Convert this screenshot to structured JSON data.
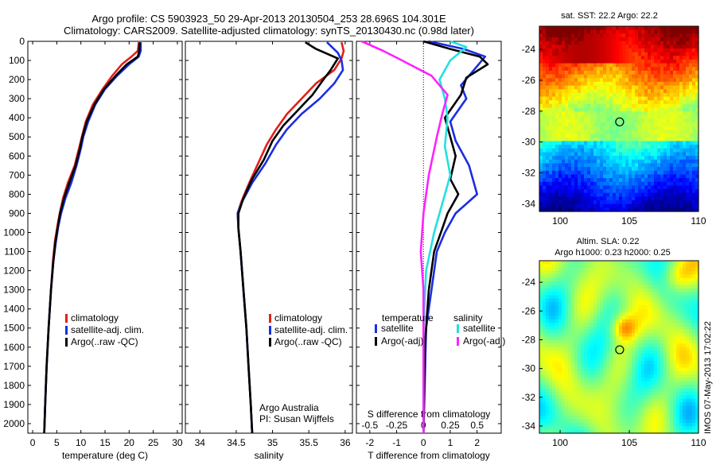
{
  "header": {
    "line1": "Argo profile: CS 5903923_50 29-Apr-2013 20130504_253 28.696S 104.301E",
    "line2": "Climatology: CARS2009. Satellite-adjusted climatology: synTS_20130430.nc (0.98d later)"
  },
  "colors": {
    "climatology": "#e0201a",
    "satellite": "#1a2ee0",
    "argo": "#000000",
    "sat_salinity": "#22e0e0",
    "argo_salinity": "#ff22ff"
  },
  "watermark": "IMOS 07-May-2013 17:02:22",
  "chart_data": [
    {
      "type": "line",
      "id": "temperature",
      "xlabel": "temperature (deg C)",
      "xlim": [
        -1,
        31
      ],
      "xticks": [
        0,
        5,
        10,
        15,
        20,
        25,
        30
      ],
      "ylim": [
        0,
        2050
      ],
      "yticks": [
        0,
        100,
        200,
        300,
        400,
        500,
        600,
        700,
        800,
        900,
        1000,
        1100,
        1200,
        1300,
        1400,
        1500,
        1600,
        1700,
        1800,
        1900,
        2000
      ],
      "legend": [
        "climatology",
        "satellite-adj. clim.",
        "Argo(..raw -QC)"
      ],
      "series": [
        {
          "name": "climatology",
          "color_key": "climatology",
          "points": [
            [
              22.0,
              5
            ],
            [
              21.8,
              50
            ],
            [
              20.5,
              80
            ],
            [
              18.5,
              120
            ],
            [
              16.5,
              180
            ],
            [
              14.5,
              250
            ],
            [
              12.5,
              330
            ],
            [
              11.0,
              420
            ],
            [
              10.2,
              500
            ],
            [
              9.6,
              560
            ],
            [
              8.7,
              650
            ],
            [
              7.3,
              740
            ],
            [
              6.3,
              820
            ],
            [
              5.6,
              900
            ],
            [
              5.1,
              970
            ],
            [
              4.6,
              1050
            ],
            [
              4.2,
              1150
            ],
            [
              3.8,
              1300
            ],
            [
              3.3,
              1500
            ],
            [
              2.9,
              1700
            ],
            [
              2.6,
              1900
            ],
            [
              2.4,
              2050
            ]
          ]
        },
        {
          "name": "satellite-adj. clim.",
          "color_key": "satellite",
          "points": [
            [
              22.4,
              5
            ],
            [
              22.4,
              50
            ],
            [
              22.0,
              80
            ],
            [
              20.0,
              120
            ],
            [
              17.5,
              180
            ],
            [
              15.0,
              250
            ],
            [
              13.0,
              330
            ],
            [
              11.5,
              420
            ],
            [
              10.5,
              500
            ],
            [
              10.0,
              560
            ],
            [
              9.1,
              650
            ],
            [
              8.0,
              740
            ],
            [
              6.8,
              820
            ],
            [
              5.9,
              900
            ],
            [
              5.3,
              970
            ],
            [
              4.8,
              1050
            ],
            [
              4.3,
              1150
            ],
            [
              3.8,
              1300
            ],
            [
              3.3,
              1500
            ],
            [
              2.9,
              1700
            ],
            [
              2.6,
              1900
            ],
            [
              2.4,
              2050
            ]
          ]
        },
        {
          "name": "Argo(..raw -QC)",
          "color_key": "argo",
          "points": [
            [
              22.2,
              5
            ],
            [
              22.1,
              50
            ],
            [
              21.8,
              80
            ],
            [
              19.5,
              120
            ],
            [
              17.2,
              180
            ],
            [
              14.8,
              250
            ],
            [
              12.8,
              330
            ],
            [
              11.2,
              420
            ],
            [
              10.3,
              500
            ],
            [
              9.8,
              560
            ],
            [
              8.9,
              650
            ],
            [
              7.6,
              740
            ],
            [
              6.5,
              820
            ],
            [
              5.7,
              900
            ],
            [
              5.2,
              970
            ],
            [
              4.7,
              1050
            ],
            [
              4.3,
              1150
            ],
            [
              3.8,
              1300
            ],
            [
              3.3,
              1500
            ],
            [
              2.9,
              1700
            ],
            [
              2.6,
              1900
            ],
            [
              2.4,
              2050
            ]
          ]
        }
      ]
    },
    {
      "type": "line",
      "id": "salinity",
      "xlabel": "salinity",
      "xlim": [
        33.8,
        36.1
      ],
      "xticks": [
        34,
        34.5,
        35,
        35.5,
        36
      ],
      "ylim": [
        0,
        2050
      ],
      "legend": [
        "climatology",
        "satellite-adj. clim.",
        "Argo(..raw -QC)"
      ],
      "annotation": [
        "Argo Australia",
        "PI: Susan Wijffels"
      ],
      "series": [
        {
          "name": "climatology",
          "color_key": "climatology",
          "points": [
            [
              35.95,
              5
            ],
            [
              35.98,
              50
            ],
            [
              35.95,
              90
            ],
            [
              35.85,
              150
            ],
            [
              35.6,
              220
            ],
            [
              35.4,
              300
            ],
            [
              35.2,
              380
            ],
            [
              35.05,
              460
            ],
            [
              34.92,
              540
            ],
            [
              34.8,
              640
            ],
            [
              34.68,
              740
            ],
            [
              34.57,
              840
            ],
            [
              34.52,
              900
            ],
            [
              34.53,
              980
            ],
            [
              34.56,
              1100
            ],
            [
              34.6,
              1300
            ],
            [
              34.64,
              1500
            ],
            [
              34.67,
              1700
            ],
            [
              34.7,
              1900
            ],
            [
              34.72,
              2050
            ]
          ]
        },
        {
          "name": "satellite-adj. clim.",
          "color_key": "satellite",
          "points": [
            [
              35.75,
              5
            ],
            [
              35.9,
              60
            ],
            [
              35.95,
              100
            ],
            [
              35.97,
              150
            ],
            [
              35.85,
              220
            ],
            [
              35.65,
              300
            ],
            [
              35.4,
              380
            ],
            [
              35.2,
              460
            ],
            [
              35.05,
              540
            ],
            [
              34.9,
              640
            ],
            [
              34.72,
              740
            ],
            [
              34.58,
              840
            ],
            [
              34.52,
              900
            ],
            [
              34.53,
              980
            ],
            [
              34.56,
              1100
            ],
            [
              34.6,
              1300
            ],
            [
              34.64,
              1500
            ],
            [
              34.67,
              1700
            ],
            [
              34.7,
              1900
            ],
            [
              34.72,
              2050
            ]
          ]
        },
        {
          "name": "Argo(..raw -QC)",
          "color_key": "argo",
          "points": [
            [
              35.45,
              5
            ],
            [
              35.6,
              40
            ],
            [
              35.9,
              90
            ],
            [
              35.8,
              150
            ],
            [
              35.7,
              200
            ],
            [
              35.55,
              280
            ],
            [
              35.35,
              360
            ],
            [
              35.15,
              440
            ],
            [
              35.0,
              520
            ],
            [
              34.88,
              620
            ],
            [
              34.72,
              720
            ],
            [
              34.6,
              820
            ],
            [
              34.53,
              900
            ],
            [
              34.53,
              980
            ],
            [
              34.56,
              1100
            ],
            [
              34.6,
              1300
            ],
            [
              34.64,
              1500
            ],
            [
              34.67,
              1700
            ],
            [
              34.7,
              1900
            ],
            [
              34.72,
              2050
            ]
          ]
        }
      ]
    },
    {
      "type": "line",
      "id": "differences",
      "xlabel": "T difference from climatology",
      "xlim": [
        -2.5,
        2.9
      ],
      "xticks": [
        -2,
        -1,
        0,
        1,
        2
      ],
      "top_label": "S difference from climatology",
      "top_ticks": [
        "-0.5",
        "-0.25",
        "0",
        "0.25",
        "0.5"
      ],
      "top_tick_x": [
        -2,
        -1,
        0,
        1,
        2
      ],
      "ylim": [
        0,
        2050
      ],
      "legend_temperature_title": "temperature",
      "legend_salinity_title": "salinity",
      "legend_temperature": [
        "satellite",
        "Argo(-adj)"
      ],
      "legend_salinity": [
        "satellite",
        "Argo(-adj)"
      ],
      "series": [
        {
          "name": "satellite",
          "group": "temperature",
          "color_key": "satellite",
          "points": [
            [
              0.2,
              0
            ],
            [
              1.5,
              40
            ],
            [
              2.3,
              80
            ],
            [
              2.0,
              130
            ],
            [
              1.4,
              230
            ],
            [
              1.6,
              300
            ],
            [
              1.0,
              420
            ],
            [
              1.2,
              520
            ],
            [
              1.7,
              650
            ],
            [
              2.0,
              800
            ],
            [
              1.2,
              900
            ],
            [
              0.8,
              1000
            ],
            [
              0.5,
              1100
            ],
            [
              0.3,
              1300
            ],
            [
              0.1,
              1500
            ],
            [
              0.05,
              1800
            ],
            [
              0.0,
              2050
            ]
          ]
        },
        {
          "name": "Argo(-adj)",
          "group": "temperature",
          "color_key": "argo",
          "points": [
            [
              0.0,
              0
            ],
            [
              1.0,
              40
            ],
            [
              2.1,
              80
            ],
            [
              2.4,
              120
            ],
            [
              1.6,
              190
            ],
            [
              1.4,
              280
            ],
            [
              0.8,
              400
            ],
            [
              1.0,
              500
            ],
            [
              1.2,
              600
            ],
            [
              1.0,
              720
            ],
            [
              1.3,
              800
            ],
            [
              0.9,
              900
            ],
            [
              0.7,
              980
            ],
            [
              0.4,
              1100
            ],
            [
              0.2,
              1300
            ],
            [
              0.05,
              1600
            ],
            [
              0.0,
              2050
            ]
          ]
        },
        {
          "name": "satellite",
          "group": "salinity",
          "color_key": "sat_salinity",
          "points": [
            [
              1.0,
              0
            ],
            [
              1.6,
              30
            ],
            [
              1.0,
              100
            ],
            [
              0.6,
              200
            ],
            [
              0.8,
              300
            ],
            [
              0.9,
              400
            ],
            [
              0.8,
              550
            ],
            [
              1.0,
              700
            ],
            [
              0.7,
              850
            ],
            [
              0.4,
              1000
            ],
            [
              0.1,
              1200
            ],
            [
              0.0,
              1500
            ],
            [
              0.0,
              2050
            ]
          ]
        },
        {
          "name": "Argo(-adj)",
          "group": "salinity",
          "color_key": "argo_salinity",
          "points": [
            [
              -2.3,
              0
            ],
            [
              -1.5,
              50
            ],
            [
              -0.8,
              100
            ],
            [
              0.3,
              180
            ],
            [
              0.9,
              280
            ],
            [
              0.7,
              380
            ],
            [
              0.5,
              500
            ],
            [
              0.2,
              700
            ],
            [
              0.0,
              900
            ],
            [
              -0.1,
              1100
            ],
            [
              0.0,
              1300
            ],
            [
              0.0,
              2050
            ]
          ]
        }
      ]
    },
    {
      "type": "heatmap",
      "id": "sst_map",
      "title": "sat. SST: 22.2 Argo: 22.2",
      "xlim": [
        98.5,
        110
      ],
      "ylim": [
        -34.5,
        -22.5
      ],
      "xticks": [
        100,
        105,
        110
      ],
      "yticks": [
        -24,
        -26,
        -28,
        -30,
        -32,
        -34
      ],
      "marker": [
        104.301,
        -28.696
      ]
    },
    {
      "type": "heatmap",
      "id": "sla_map",
      "title": [
        "Altim. SLA: 0.22",
        "Argo h1000: 0.23 h2000: 0.25"
      ],
      "xlim": [
        98.5,
        110
      ],
      "ylim": [
        -34.5,
        -22.5
      ],
      "xticks": [
        100,
        105,
        110
      ],
      "yticks": [
        -24,
        -26,
        -28,
        -30,
        -32,
        -34
      ],
      "marker": [
        104.301,
        -28.696
      ]
    }
  ]
}
